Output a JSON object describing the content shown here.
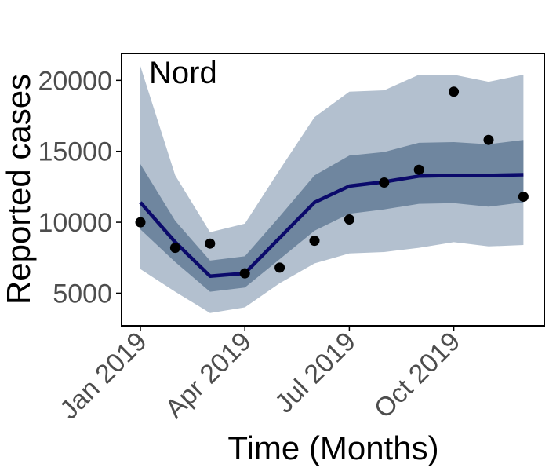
{
  "chart_data": {
    "type": "line",
    "title": "Nord",
    "xlabel": "Time (Months)",
    "ylabel": "Reported cases",
    "x": [
      "2019-01",
      "2019-02",
      "2019-03",
      "2019-04",
      "2019-05",
      "2019-06",
      "2019-07",
      "2019-08",
      "2019-09",
      "2019-10",
      "2019-11",
      "2019-12"
    ],
    "x_ticks": [
      {
        "x": "2019-01",
        "label": "Jan 2019"
      },
      {
        "x": "2019-04",
        "label": "Apr 2019"
      },
      {
        "x": "2019-07",
        "label": "Jul 2019"
      },
      {
        "x": "2019-10",
        "label": "Oct 2019"
      }
    ],
    "y_ticks": [
      5000,
      10000,
      15000,
      20000
    ],
    "ylim": [
      2700,
      21900
    ],
    "grid": false,
    "legend": "none",
    "series": [
      {
        "kind": "line",
        "values": [
          11400,
          8600,
          6200,
          6400,
          8900,
          11400,
          12550,
          12850,
          13250,
          13300,
          13300,
          13350
        ]
      },
      {
        "kind": "band-inner",
        "lower": [
          9500,
          7200,
          5100,
          5400,
          7400,
          9400,
          10600,
          10900,
          11300,
          11350,
          11100,
          11400
        ],
        "upper": [
          14100,
          10100,
          7300,
          7600,
          10400,
          13300,
          14700,
          14950,
          15600,
          15650,
          15500,
          15800
        ]
      },
      {
        "kind": "band-outer",
        "lower": [
          6700,
          5100,
          3600,
          4000,
          5700,
          7100,
          7800,
          7900,
          8200,
          8600,
          8300,
          8400
        ],
        "upper": [
          21000,
          13300,
          9300,
          9900,
          13700,
          17400,
          19200,
          19300,
          20400,
          20400,
          19900,
          20400
        ]
      },
      {
        "kind": "points",
        "values": [
          10000,
          8200,
          8500,
          6400,
          6800,
          8700,
          10200,
          12800,
          13700,
          19200,
          15800,
          11800
        ]
      }
    ],
    "colors": {
      "line": "#0b0a6b",
      "band_inner": "#6f869f",
      "band_outer": "#b3c0cf",
      "points": "#000000",
      "axis": "#000000",
      "tick_label": "#4d4d4d"
    }
  }
}
